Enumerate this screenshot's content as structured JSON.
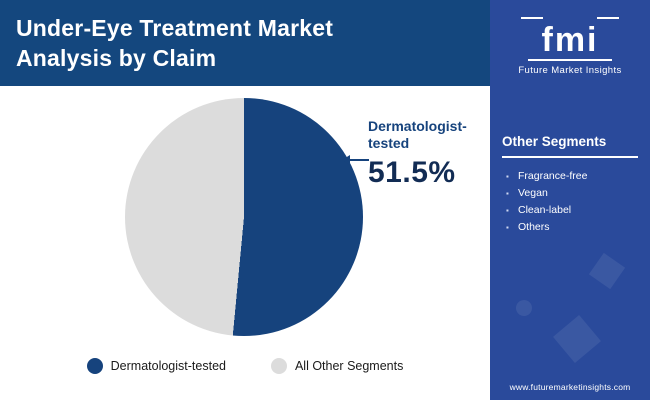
{
  "header": {
    "line1": "Under-Eye Treatment Market",
    "line2": "Analysis by Claim"
  },
  "sidebar": {
    "logo_text": "fmi",
    "brand": "Future Market Insights",
    "panel_title": "Other Segments",
    "segments": [
      "Fragrance-free",
      "Vegan",
      "Clean-label",
      "Others"
    ],
    "website": "www.futuremarketinsights.com"
  },
  "chart_data": {
    "type": "pie",
    "title": "Under-Eye Treatment Market Analysis by Claim",
    "slices": [
      {
        "label": "Dermatologist-tested",
        "value": 51.5,
        "color": "#16437d"
      },
      {
        "label": "All Other Segments",
        "value": 48.5,
        "color": "#dcdcdc"
      }
    ],
    "start_angle_deg": 0,
    "direction": "clockwise",
    "annotation": {
      "label": "Dermatologist-tested",
      "value_text": "51.5%"
    },
    "legend_position": "bottom"
  },
  "colors": {
    "header_bg": "#14477e",
    "sidebar_bg": "#2a4a9b",
    "annotation_text": "#16437d",
    "value_text": "#122c54"
  }
}
